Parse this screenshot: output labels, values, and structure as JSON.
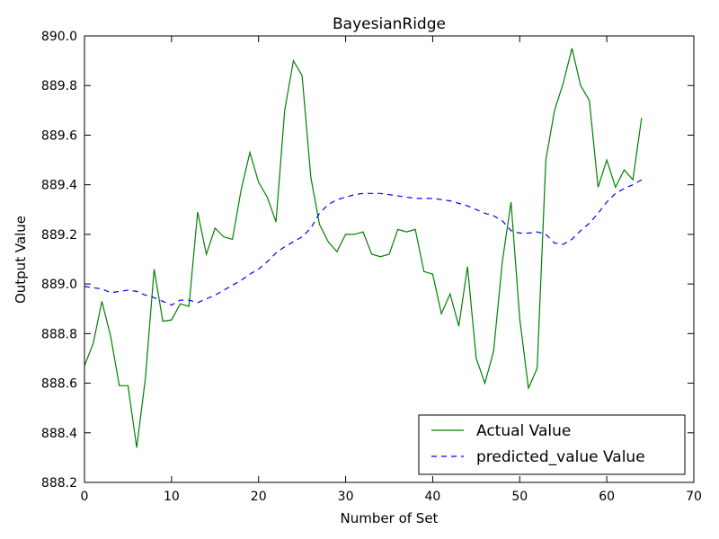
{
  "chart_data": {
    "type": "line",
    "title": "BayesianRidge",
    "xlabel": "Number of Set",
    "ylabel": "Output Value",
    "xlim": [
      0,
      70
    ],
    "ylim": [
      888.2,
      890.0
    ],
    "x_ticks": [
      "0",
      "10",
      "20",
      "30",
      "40",
      "50",
      "60",
      "70"
    ],
    "y_ticks": [
      "888.2",
      "888.4",
      "888.6",
      "888.8",
      "889.0",
      "889.2",
      "889.4",
      "889.6",
      "889.8",
      "890.0"
    ],
    "grid": false,
    "legend_position": "lower-right",
    "series": [
      {
        "name": "Actual Value",
        "color": "#008000",
        "style": "solid",
        "values": [
          888.67,
          888.76,
          888.93,
          888.79,
          888.59,
          888.59,
          888.34,
          888.62,
          889.06,
          888.85,
          888.855,
          888.92,
          888.91,
          889.29,
          889.12,
          889.225,
          889.19,
          889.18,
          889.38,
          889.53,
          889.41,
          889.35,
          889.25,
          889.7,
          889.9,
          889.84,
          889.43,
          889.24,
          889.17,
          889.13,
          889.2,
          889.2,
          889.21,
          889.12,
          889.11,
          889.12,
          889.22,
          889.21,
          889.22,
          889.05,
          889.04,
          888.88,
          888.96,
          888.83,
          889.07,
          888.7,
          888.6,
          888.73,
          889.09,
          889.33,
          888.86,
          888.58,
          888.66,
          889.5,
          889.7,
          889.81,
          889.95,
          889.8,
          889.74,
          889.39,
          889.5,
          889.39,
          889.46,
          889.42,
          889.67
        ]
      },
      {
        "name": "predicted_value Value",
        "color": "#0000ff",
        "style": "dashed",
        "values": [
          888.99,
          888.985,
          888.98,
          888.965,
          888.97,
          888.975,
          888.97,
          888.955,
          888.945,
          888.93,
          888.915,
          888.935,
          888.935,
          888.925,
          888.94,
          888.955,
          888.975,
          888.995,
          889.015,
          889.04,
          889.06,
          889.09,
          889.125,
          889.15,
          889.17,
          889.19,
          889.225,
          889.285,
          889.32,
          889.34,
          889.35,
          889.36,
          889.365,
          889.365,
          889.365,
          889.36,
          889.355,
          889.35,
          889.345,
          889.345,
          889.345,
          889.34,
          889.335,
          889.325,
          889.315,
          889.3,
          889.285,
          889.275,
          889.255,
          889.215,
          889.205,
          889.205,
          889.21,
          889.2,
          889.165,
          889.16,
          889.18,
          889.215,
          889.245,
          889.285,
          889.33,
          889.365,
          889.385,
          889.4,
          889.42
        ]
      }
    ]
  }
}
